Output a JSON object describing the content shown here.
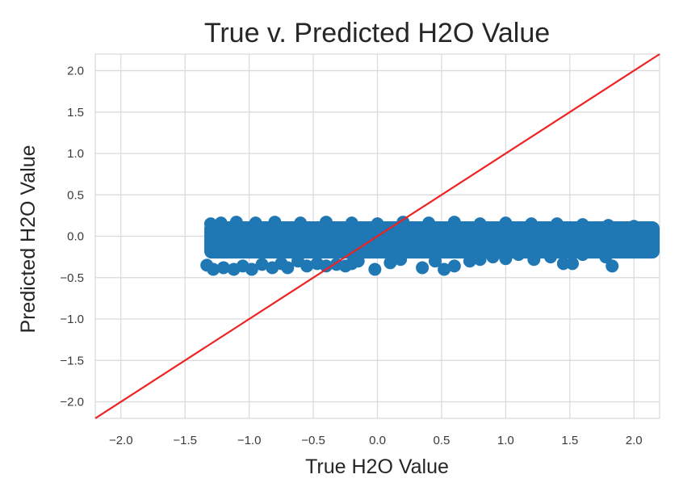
{
  "chart_data": {
    "type": "scatter",
    "title": "True v. Predicted H2O Value",
    "xlabel": "True H2O Value",
    "ylabel": "Predicted H2O Value",
    "xlim": [
      -2.2,
      2.2
    ],
    "ylim": [
      -2.2,
      2.2
    ],
    "xticks": [
      -2.0,
      -1.5,
      -1.0,
      -0.5,
      0.0,
      0.5,
      1.0,
      1.5,
      2.0
    ],
    "yticks": [
      -2.0,
      -1.5,
      -1.0,
      -0.5,
      0.0,
      0.5,
      1.0,
      1.5,
      2.0
    ],
    "xtick_labels": [
      "−2.0",
      "−1.5",
      "−1.0",
      "−0.5",
      "0.0",
      "0.5",
      "1.0",
      "1.5",
      "2.0"
    ],
    "ytick_labels": [
      "−2.0",
      "−1.5",
      "−1.0",
      "−0.5",
      "0.0",
      "0.5",
      "1.0",
      "1.5",
      "2.0"
    ],
    "grid": true,
    "colors": {
      "points": "#1f77b4",
      "reference_line": "#ee2222",
      "grid": "#d9d9d9",
      "background": "#ffffff"
    },
    "reference_line": {
      "x": [
        -2.2,
        2.2
      ],
      "y": [
        -2.2,
        2.2
      ]
    },
    "point_cloud": {
      "x_range": [
        -1.35,
        2.2
      ],
      "y_range": [
        -0.42,
        0.18
      ]
    },
    "series": [
      {
        "points": [
          [
            -1.33,
            -0.35
          ],
          [
            -1.28,
            -0.4
          ],
          [
            -1.2,
            -0.38
          ],
          [
            -1.12,
            -0.4
          ],
          [
            -1.05,
            -0.36
          ],
          [
            -0.98,
            -0.4
          ],
          [
            -0.9,
            -0.34
          ],
          [
            -0.82,
            -0.38
          ],
          [
            -0.75,
            -0.33
          ],
          [
            -0.7,
            -0.38
          ],
          [
            -0.62,
            -0.3
          ],
          [
            -0.55,
            -0.36
          ],
          [
            -0.47,
            -0.33
          ],
          [
            -0.4,
            -0.36
          ],
          [
            -0.32,
            -0.34
          ],
          [
            -0.25,
            -0.36
          ],
          [
            -0.2,
            -0.33
          ],
          [
            -0.15,
            -0.3
          ],
          [
            -0.02,
            -0.4
          ],
          [
            0.1,
            -0.32
          ],
          [
            0.18,
            -0.28
          ],
          [
            0.35,
            -0.38
          ],
          [
            0.45,
            -0.3
          ],
          [
            0.52,
            -0.4
          ],
          [
            0.6,
            -0.36
          ],
          [
            0.72,
            -0.3
          ],
          [
            0.8,
            -0.28
          ],
          [
            0.9,
            -0.25
          ],
          [
            1.0,
            -0.27
          ],
          [
            1.1,
            -0.22
          ],
          [
            1.22,
            -0.28
          ],
          [
            1.35,
            -0.25
          ],
          [
            1.45,
            -0.33
          ],
          [
            1.52,
            -0.33
          ],
          [
            1.6,
            -0.22
          ],
          [
            1.78,
            -0.25
          ],
          [
            1.83,
            -0.36
          ],
          [
            1.95,
            -0.18
          ],
          [
            2.05,
            -0.15
          ],
          [
            2.15,
            -0.16
          ],
          [
            -1.3,
            0.15
          ],
          [
            -1.22,
            0.16
          ],
          [
            -1.1,
            0.17
          ],
          [
            -0.95,
            0.16
          ],
          [
            -0.8,
            0.17
          ],
          [
            -0.6,
            0.16
          ],
          [
            -0.4,
            0.17
          ],
          [
            -0.2,
            0.16
          ],
          [
            0.0,
            0.15
          ],
          [
            0.2,
            0.17
          ],
          [
            0.4,
            0.16
          ],
          [
            0.6,
            0.17
          ],
          [
            0.8,
            0.15
          ],
          [
            1.0,
            0.16
          ],
          [
            1.2,
            0.15
          ],
          [
            1.4,
            0.15
          ],
          [
            1.6,
            0.14
          ],
          [
            1.8,
            0.13
          ],
          [
            2.0,
            0.12
          ],
          [
            2.15,
            0.12
          ]
        ]
      }
    ]
  }
}
